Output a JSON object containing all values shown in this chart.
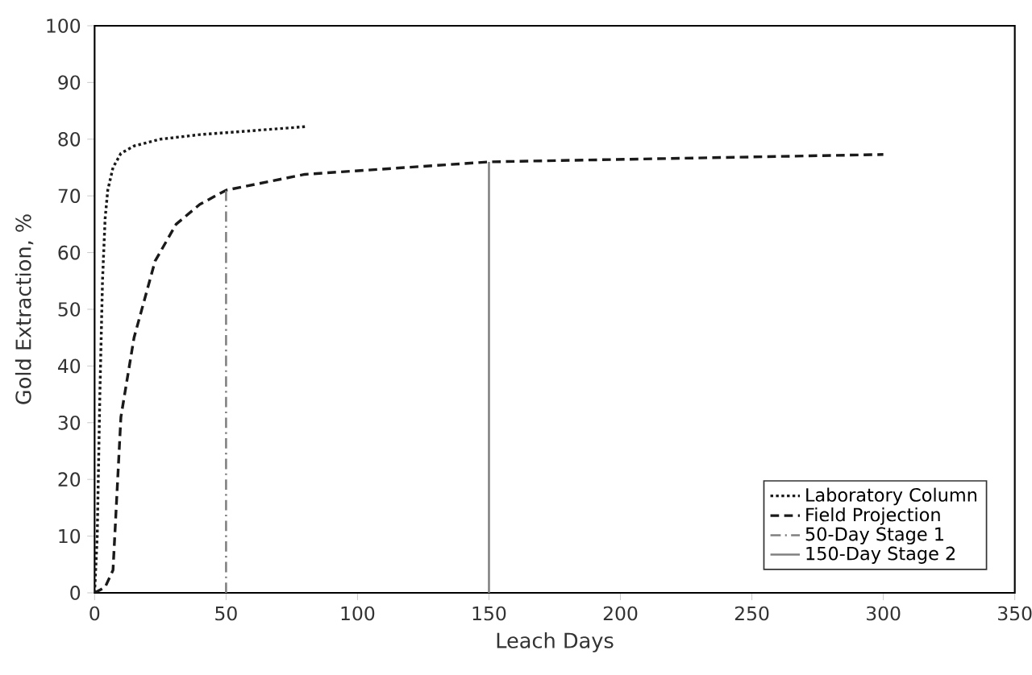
{
  "chart_data": {
    "type": "line",
    "xlabel": "Leach Days",
    "ylabel": "Gold Extraction, %",
    "xlim": [
      0,
      350
    ],
    "xticks": [
      0,
      50,
      100,
      150,
      200,
      250,
      300,
      350
    ],
    "ylim": [
      0,
      100
    ],
    "yticks": [
      0,
      10,
      20,
      30,
      40,
      50,
      60,
      70,
      80,
      90,
      100
    ],
    "legend": "bottom right",
    "grid": false,
    "marker": "none",
    "series": [
      {
        "name": "Laboratory Column",
        "color": "#1a1a1a",
        "line_style": "dotted",
        "x": [
          0,
          1,
          2,
          3,
          4,
          5,
          7,
          10,
          15,
          25,
          40,
          60,
          80
        ],
        "values": [
          0,
          10,
          35,
          55,
          66,
          71,
          75,
          77.5,
          78.8,
          80,
          80.8,
          81.5,
          82.2
        ]
      },
      {
        "name": "Field Projection",
        "color": "#1a1a1a",
        "line_style": "dashed",
        "x": [
          0,
          4,
          7,
          10,
          15,
          23,
          31,
          40,
          50,
          80,
          150,
          300
        ],
        "values": [
          0,
          1,
          4,
          31,
          45,
          58.5,
          65,
          68.5,
          71,
          73.8,
          76,
          77.3
        ]
      },
      {
        "name": "50-Day Stage 1",
        "color": "#808080",
        "line_style": "dashdot",
        "x": [
          50,
          50
        ],
        "values": [
          0,
          71
        ]
      },
      {
        "name": "150-Day Stage 2",
        "color": "#808080",
        "line_style": "solid",
        "x": [
          150,
          150
        ],
        "values": [
          0,
          76
        ]
      }
    ]
  }
}
